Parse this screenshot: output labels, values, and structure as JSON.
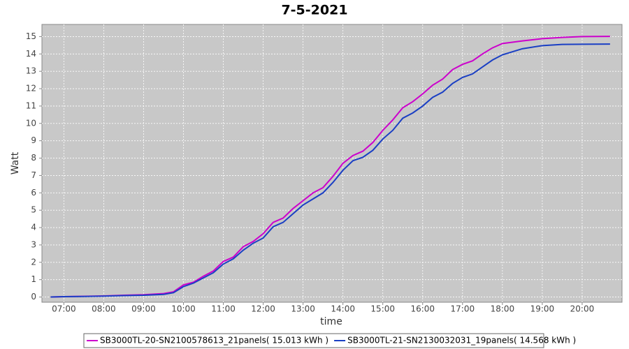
{
  "chart_data": {
    "type": "line",
    "title": "7-5-2021",
    "x_label": "time",
    "y_label": "Watt",
    "x": [
      "06:40",
      "07:00",
      "07:30",
      "08:00",
      "08:30",
      "09:00",
      "09:30",
      "09:45",
      "10:00",
      "10:15",
      "10:30",
      "10:45",
      "11:00",
      "11:15",
      "11:30",
      "11:45",
      "12:00",
      "12:15",
      "12:30",
      "12:45",
      "13:00",
      "13:15",
      "13:30",
      "13:45",
      "14:00",
      "14:15",
      "14:30",
      "14:45",
      "15:00",
      "15:15",
      "15:30",
      "15:45",
      "16:00",
      "16:15",
      "16:30",
      "16:45",
      "17:00",
      "17:15",
      "17:30",
      "17:45",
      "18:00",
      "18:30",
      "19:00",
      "19:30",
      "20:00",
      "20:42"
    ],
    "series": [
      {
        "name": "SB3000TL-20-SN2100578613_21panels( 15.013 kWh )",
        "color": "#cc00cc",
        "values": [
          0,
          0.02,
          0.04,
          0.06,
          0.1,
          0.13,
          0.2,
          0.3,
          0.7,
          0.85,
          1.2,
          1.5,
          2.05,
          2.3,
          2.9,
          3.2,
          3.65,
          4.3,
          4.55,
          5.1,
          5.55,
          6.0,
          6.3,
          6.95,
          7.7,
          8.15,
          8.4,
          8.9,
          9.6,
          10.2,
          10.9,
          11.25,
          11.7,
          12.2,
          12.55,
          13.1,
          13.4,
          13.6,
          14.0,
          14.35,
          14.6,
          14.75,
          14.88,
          14.95,
          15.0,
          15.013
        ]
      },
      {
        "name": "SB3000TL-21-SN2130032031_19panels( 14.568 kWh )",
        "color": "#1a3fc4",
        "values": [
          0,
          0.02,
          0.03,
          0.05,
          0.08,
          0.1,
          0.15,
          0.25,
          0.6,
          0.8,
          1.1,
          1.4,
          1.9,
          2.2,
          2.7,
          3.1,
          3.4,
          4.05,
          4.3,
          4.8,
          5.3,
          5.65,
          6.0,
          6.6,
          7.3,
          7.85,
          8.05,
          8.45,
          9.1,
          9.6,
          10.3,
          10.6,
          11.0,
          11.5,
          11.8,
          12.3,
          12.65,
          12.85,
          13.25,
          13.65,
          13.95,
          14.3,
          14.48,
          14.55,
          14.56,
          14.568
        ]
      }
    ],
    "xlim": [
      "06:27",
      "21:00"
    ],
    "xticks": [
      "07:00",
      "08:00",
      "09:00",
      "10:00",
      "11:00",
      "12:00",
      "13:00",
      "14:00",
      "15:00",
      "16:00",
      "17:00",
      "18:00",
      "19:00",
      "20:00"
    ],
    "ylim": [
      -0.3,
      15.7
    ],
    "yticks": [
      0,
      1,
      2,
      3,
      4,
      5,
      6,
      7,
      8,
      9,
      10,
      11,
      12,
      13,
      14,
      15
    ],
    "grid": true
  }
}
